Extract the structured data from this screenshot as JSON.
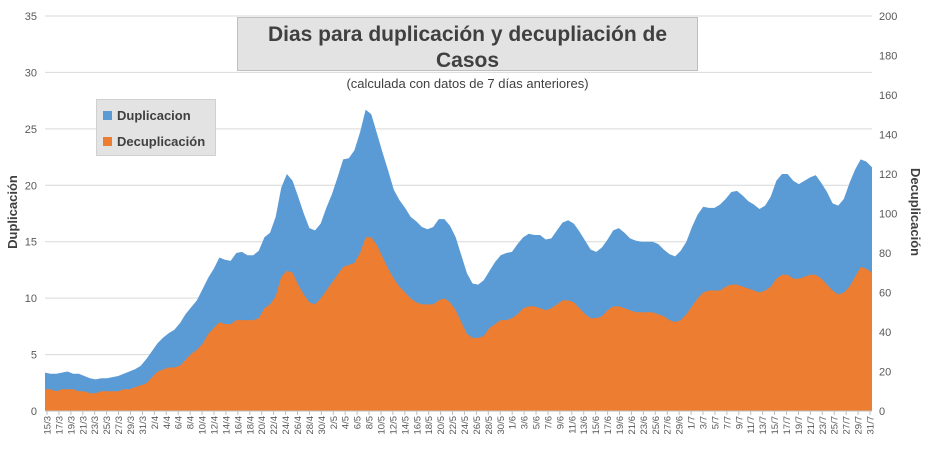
{
  "chart_data": {
    "type": "area",
    "title": "Dias para duplicación y decupliación de Casos",
    "subtitle": "(calculada con datos de 7 días anteriores)",
    "ylabel_left": "Duplicación",
    "ylabel_right": "Decuplicación",
    "ylim_left": [
      0,
      35
    ],
    "ylim_right": [
      0,
      200
    ],
    "yticks_left": [
      0,
      5,
      10,
      15,
      20,
      25,
      30,
      35
    ],
    "yticks_right": [
      0,
      20,
      40,
      60,
      80,
      100,
      120,
      140,
      160,
      180,
      200
    ],
    "xtick_labels": [
      "15/3",
      "17/3",
      "19/3",
      "21/3",
      "23/3",
      "25/3",
      "27/3",
      "29/3",
      "31/3",
      "2/4",
      "4/4",
      "6/4",
      "8/4",
      "10/4",
      "12/4",
      "14/4",
      "16/4",
      "18/4",
      "20/4",
      "22/4",
      "24/4",
      "26/4",
      "28/4",
      "30/4",
      "2/5",
      "4/5",
      "6/5",
      "8/5",
      "10/5",
      "12/5",
      "14/5",
      "16/5",
      "18/5",
      "20/5",
      "22/5",
      "24/5",
      "26/5",
      "28/5",
      "30/5",
      "1/6",
      "3/6",
      "5/6",
      "7/6",
      "9/6",
      "11/6",
      "13/6",
      "15/6",
      "17/6",
      "19/6",
      "21/6",
      "23/6",
      "25/6",
      "27/6",
      "29/6",
      "1/7",
      "3/7",
      "5/7",
      "7/7",
      "9/7",
      "11/7",
      "13/7",
      "15/7",
      "17/7",
      "19/7",
      "21/7",
      "23/7",
      "25/7",
      "27/7",
      "29/7",
      "31/7"
    ],
    "legend_position": "upper-left",
    "grid": true,
    "series": [
      {
        "name": "Duplicacion",
        "axis": "left",
        "color": "#5b9bd5",
        "values": [
          3.4,
          3.3,
          3.3,
          3.4,
          3.5,
          3.3,
          3.3,
          3.1,
          2.9,
          2.8,
          2.9,
          2.9,
          3.0,
          3.1,
          3.3,
          3.5,
          3.7,
          4.0,
          4.6,
          5.3,
          6.0,
          6.5,
          6.9,
          7.2,
          7.8,
          8.6,
          9.2,
          9.8,
          10.8,
          11.8,
          12.6,
          13.6,
          13.4,
          13.3,
          14.0,
          14.1,
          13.8,
          13.8,
          14.2,
          15.4,
          15.8,
          17.2,
          19.8,
          21.0,
          20.4,
          19.0,
          17.5,
          16.2,
          16.0,
          16.6,
          18.0,
          19.2,
          20.7,
          22.3,
          22.4,
          23.1,
          24.7,
          26.7,
          26.3,
          24.6,
          22.9,
          21.3,
          19.6,
          18.7,
          18.0,
          17.2,
          16.8,
          16.3,
          16.1,
          16.3,
          17.0,
          17.0,
          16.4,
          15.4,
          13.8,
          12.2,
          11.3,
          11.2,
          11.6,
          12.4,
          13.2,
          13.8,
          14.0,
          14.1,
          14.8,
          15.4,
          15.7,
          15.6,
          15.6,
          15.2,
          15.3,
          16.0,
          16.7,
          16.9,
          16.6,
          15.9,
          15.1,
          14.3,
          14.1,
          14.5,
          15.2,
          16.0,
          16.2,
          15.8,
          15.3,
          15.1,
          15.0,
          15.0,
          15.0,
          14.8,
          14.3,
          13.9,
          13.7,
          14.2,
          15.0,
          16.3,
          17.4,
          18.1,
          18.0,
          18.0,
          18.3,
          18.8,
          19.4,
          19.5,
          19.1,
          18.6,
          18.3,
          17.9,
          18.2,
          19.0,
          20.4,
          21.0,
          21.0,
          20.4,
          20.1,
          20.4,
          20.7,
          20.9,
          20.2,
          19.4,
          18.4,
          18.2,
          18.8,
          20.2,
          21.4,
          22.3,
          22.1,
          21.6
        ]
      },
      {
        "name": "Decuplicación",
        "axis": "right",
        "color": "#ed7d31",
        "values": [
          11,
          11,
          10,
          11,
          11,
          11,
          10,
          10,
          9,
          9,
          10,
          10,
          10,
          10,
          11,
          11,
          12,
          13,
          14,
          17,
          20,
          21,
          22,
          22,
          23,
          26,
          29,
          31,
          34,
          39,
          42,
          45,
          44,
          44,
          46,
          46,
          46,
          46,
          47,
          52,
          54,
          58,
          68,
          71,
          70,
          64,
          59,
          55,
          54,
          57,
          61,
          65,
          69,
          73,
          74,
          75,
          80,
          88,
          88,
          84,
          78,
          72,
          67,
          63,
          60,
          57,
          55,
          54,
          54,
          54,
          56,
          57,
          55,
          51,
          45,
          39,
          37,
          37,
          38,
          42,
          44,
          46,
          46,
          47,
          49,
          52,
          53,
          53,
          52,
          51,
          52,
          54,
          56,
          56,
          55,
          52,
          49,
          47,
          47,
          48,
          51,
          53,
          53,
          52,
          51,
          50,
          50,
          50,
          50,
          49,
          48,
          46,
          45,
          46,
          49,
          53,
          57,
          60,
          61,
          61,
          61,
          63,
          64,
          64,
          63,
          62,
          61,
          60,
          61,
          63,
          67,
          69,
          69,
          67,
          67,
          68,
          69,
          69,
          67,
          64,
          61,
          59,
          60,
          63,
          68,
          73,
          72,
          70
        ]
      }
    ]
  }
}
